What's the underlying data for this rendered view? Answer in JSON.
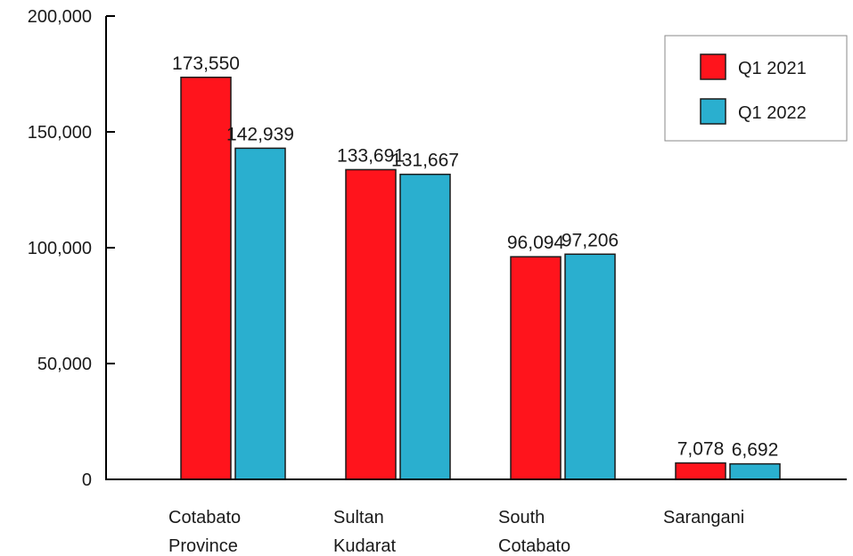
{
  "chart_data": {
    "type": "bar",
    "categories": [
      [
        "Cotabato",
        "Province"
      ],
      [
        "Sultan",
        "Kudarat"
      ],
      [
        "South",
        "Cotabato"
      ],
      [
        "Sarangani"
      ]
    ],
    "series": [
      {
        "name": "Q1 2021",
        "color": "#ff141c",
        "values": [
          173550,
          133691,
          96094,
          7078
        ],
        "labels": [
          "173,550",
          "133,691",
          "96,094",
          "7,078"
        ]
      },
      {
        "name": "Q1 2022",
        "color": "#2aafcf",
        "values": [
          142939,
          131667,
          97206,
          6692
        ],
        "labels": [
          "142,939",
          "131,667",
          "97,206",
          "6,692"
        ]
      }
    ],
    "yticks": [
      0,
      50000,
      100000,
      150000,
      200000
    ],
    "ytick_labels": [
      "0",
      "50,000",
      "100,000",
      "150,000",
      "200,000"
    ],
    "ylim": [
      0,
      200000
    ],
    "title": "",
    "xlabel": "",
    "ylabel": "",
    "grid": false,
    "legend_position": "top-right"
  }
}
